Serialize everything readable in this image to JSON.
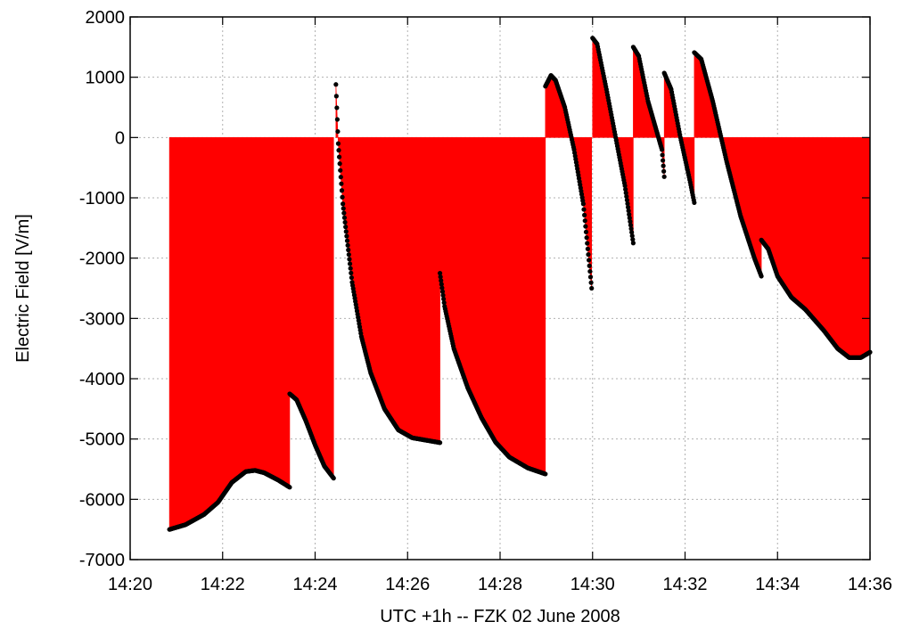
{
  "chart_data": {
    "type": "area",
    "title": "",
    "xlabel": "UTC +1h -- FZK 02 June 2008",
    "ylabel": "Electric Field [V/m]",
    "xlim": [
      0,
      16
    ],
    "ylim": [
      -7000,
      2000
    ],
    "x_unit": "minutes after 14:20",
    "x_ticks": [
      {
        "value": 0,
        "label": "14:20"
      },
      {
        "value": 2,
        "label": "14:22"
      },
      {
        "value": 4,
        "label": "14:24"
      },
      {
        "value": 6,
        "label": "14:26"
      },
      {
        "value": 8,
        "label": "14:28"
      },
      {
        "value": 10,
        "label": "14:30"
      },
      {
        "value": 12,
        "label": "14:32"
      },
      {
        "value": 14,
        "label": "14:34"
      },
      {
        "value": 16,
        "label": "14:36"
      }
    ],
    "y_ticks": [
      2000,
      1000,
      0,
      -1000,
      -2000,
      -3000,
      -4000,
      -5000,
      -6000,
      -7000
    ],
    "grid": true,
    "fill_color": "#ff0000",
    "marker_color": "#000000",
    "series": [
      {
        "segments": [
          [
            [
              0.85,
              -6500
            ],
            [
              1.2,
              -6420
            ],
            [
              1.6,
              -6250
            ],
            [
              1.9,
              -6050
            ],
            [
              2.2,
              -5720
            ],
            [
              2.5,
              -5540
            ],
            [
              2.7,
              -5520
            ],
            [
              2.9,
              -5560
            ],
            [
              3.2,
              -5680
            ],
            [
              3.45,
              -5800
            ]
          ],
          [
            [
              3.45,
              -4250
            ],
            [
              3.6,
              -4350
            ],
            [
              3.8,
              -4700
            ],
            [
              4.0,
              -5100
            ],
            [
              4.2,
              -5450
            ],
            [
              4.4,
              -5650
            ]
          ],
          [
            [
              4.45,
              880
            ],
            [
              4.48,
              300
            ],
            [
              4.5,
              -100
            ],
            [
              4.6,
              -1100
            ],
            [
              4.8,
              -2400
            ],
            [
              5.0,
              -3300
            ],
            [
              5.2,
              -3900
            ],
            [
              5.5,
              -4500
            ],
            [
              5.8,
              -4850
            ],
            [
              6.1,
              -4980
            ],
            [
              6.4,
              -5020
            ],
            [
              6.7,
              -5060
            ]
          ],
          [
            [
              6.7,
              -2250
            ],
            [
              6.8,
              -2800
            ],
            [
              7.0,
              -3500
            ],
            [
              7.3,
              -4150
            ],
            [
              7.6,
              -4650
            ],
            [
              7.9,
              -5050
            ],
            [
              8.2,
              -5300
            ],
            [
              8.6,
              -5480
            ],
            [
              8.98,
              -5580
            ]
          ],
          [
            [
              8.98,
              850
            ],
            [
              9.1,
              1030
            ],
            [
              9.2,
              950
            ],
            [
              9.4,
              500
            ],
            [
              9.6,
              -200
            ],
            [
              9.8,
              -1100
            ],
            [
              9.98,
              -2500
            ]
          ],
          [
            [
              10.0,
              1650
            ],
            [
              10.1,
              1550
            ],
            [
              10.3,
              800
            ],
            [
              10.5,
              0
            ],
            [
              10.7,
              -800
            ],
            [
              10.88,
              -1750
            ]
          ],
          [
            [
              10.88,
              1500
            ],
            [
              11.0,
              1350
            ],
            [
              11.2,
              600
            ],
            [
              11.35,
              200
            ],
            [
              11.5,
              -200
            ],
            [
              11.55,
              -650
            ]
          ],
          [
            [
              11.55,
              1070
            ],
            [
              11.7,
              800
            ],
            [
              11.9,
              0
            ],
            [
              12.1,
              -700
            ],
            [
              12.2,
              -1080
            ]
          ],
          [
            [
              12.2,
              1410
            ],
            [
              12.35,
              1300
            ],
            [
              12.6,
              600
            ],
            [
              12.9,
              -400
            ],
            [
              13.2,
              -1300
            ],
            [
              13.5,
              -2000
            ],
            [
              13.65,
              -2300
            ]
          ],
          [
            [
              13.65,
              -1700
            ],
            [
              13.8,
              -1850
            ],
            [
              14.0,
              -2300
            ],
            [
              14.3,
              -2650
            ],
            [
              14.6,
              -2850
            ],
            [
              15.0,
              -3200
            ],
            [
              15.3,
              -3500
            ],
            [
              15.55,
              -3650
            ],
            [
              15.8,
              -3650
            ],
            [
              16.0,
              -3560
            ]
          ]
        ]
      }
    ]
  }
}
